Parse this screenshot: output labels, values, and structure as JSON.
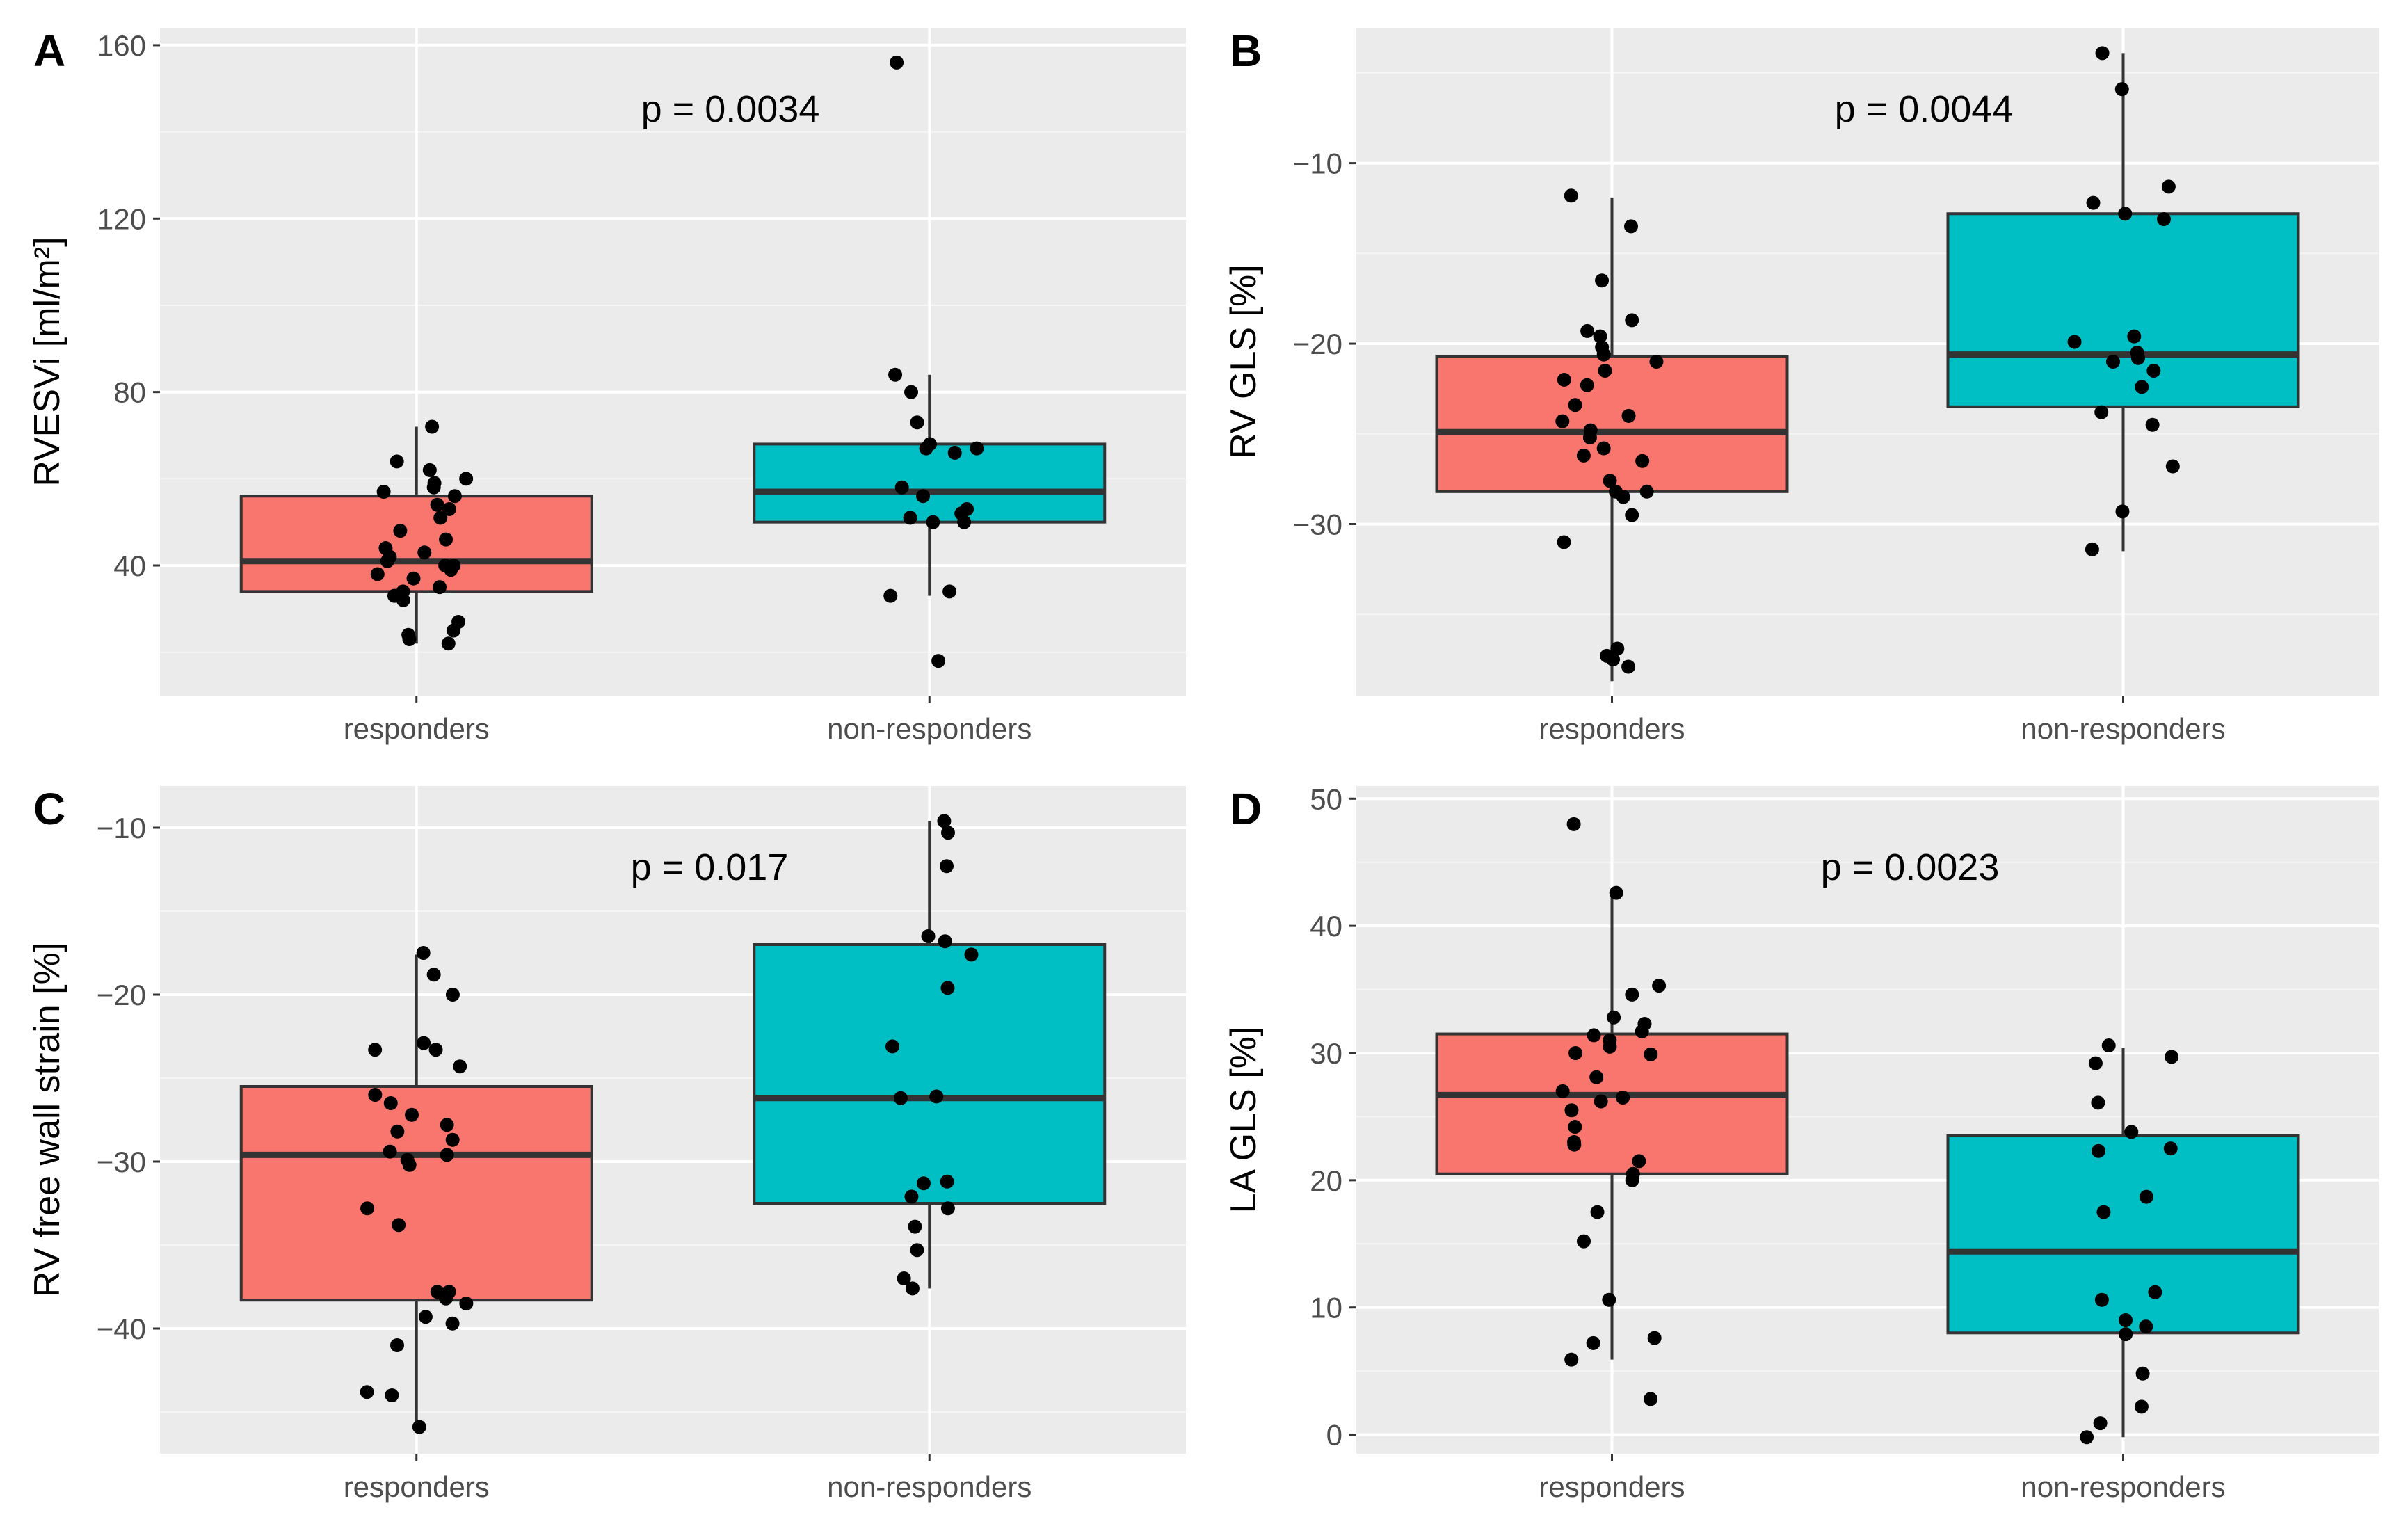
{
  "figure": {
    "background": "#ffffff"
  },
  "style": {
    "panel_bg": "#ebebeb",
    "grid_major": "#ffffff",
    "grid_minor": "#f5f5f5",
    "box_outline": "#333333",
    "point_color": "#000000",
    "text_color": "#000000",
    "tick_label_color": "#4d4d4d"
  },
  "chart_data": [
    {
      "panel_label": "A",
      "type": "box",
      "ylabel": "RVESVi [ml/m²]",
      "xlabel": "",
      "annotation": "p = 0.0034",
      "categories": [
        "responders",
        "non-responders"
      ],
      "ylim": [
        10,
        164
      ],
      "yticks": [
        40,
        80,
        120,
        160
      ],
      "grid": true,
      "legend": "none",
      "series": [
        {
          "category": "responders",
          "color": "#F8766D",
          "q1": 34,
          "median": 41,
          "q3": 56,
          "whisker_low": 22,
          "whisker_high": 72,
          "points": [
            72,
            64,
            62,
            60,
            59,
            58,
            57,
            56,
            54,
            53,
            51,
            48,
            46,
            44,
            43,
            42,
            41,
            40,
            40,
            39,
            38,
            37,
            35,
            34,
            33,
            32,
            27,
            25,
            24,
            23,
            22
          ]
        },
        {
          "category": "non-responders",
          "color": "#00BFC4",
          "q1": 50,
          "median": 57,
          "q3": 68,
          "whisker_low": 33,
          "whisker_high": 84,
          "points": [
            156,
            84,
            80,
            73,
            68,
            67,
            67,
            66,
            58,
            56,
            53,
            52,
            51,
            50,
            50,
            34,
            33,
            18
          ]
        }
      ]
    },
    {
      "panel_label": "B",
      "type": "box",
      "ylabel": "RV GLS [%]",
      "xlabel": "",
      "annotation": "p = 0.0044",
      "categories": [
        "responders",
        "non-responders"
      ],
      "ylim": [
        -39.5,
        -2.5
      ],
      "yticks": [
        -30,
        -20,
        -10
      ],
      "grid": true,
      "legend": "none",
      "series": [
        {
          "category": "responders",
          "color": "#F8766D",
          "q1": -28.2,
          "median": -24.9,
          "q3": -20.7,
          "whisker_low": -38.7,
          "whisker_high": -11.9,
          "points": [
            -11.8,
            -13.5,
            -16.5,
            -18.7,
            -19.3,
            -19.6,
            -20.2,
            -20.6,
            -21.0,
            -21.5,
            -22.0,
            -22.3,
            -23.4,
            -24.0,
            -24.3,
            -24.8,
            -25.2,
            -25.8,
            -26.2,
            -26.5,
            -27.6,
            -28.2,
            -28.2,
            -28.5,
            -29.5,
            -31.0,
            -36.9,
            -37.3,
            -37.5,
            -37.9
          ]
        },
        {
          "category": "non-responders",
          "color": "#00BFC4",
          "q1": -23.5,
          "median": -20.6,
          "q3": -12.8,
          "whisker_low": -31.5,
          "whisker_high": -3.9,
          "points": [
            -3.9,
            -5.9,
            -11.3,
            -12.2,
            -12.8,
            -13.1,
            -19.6,
            -19.9,
            -20.5,
            -20.8,
            -21.0,
            -21.5,
            -22.4,
            -23.8,
            -24.5,
            -26.8,
            -29.3,
            -31.4
          ]
        }
      ]
    },
    {
      "panel_label": "C",
      "type": "box",
      "ylabel": "RV free wall strain [%]",
      "xlabel": "",
      "annotation": "p = 0.017",
      "categories": [
        "responders",
        "non-responders"
      ],
      "ylim": [
        -47.5,
        -7.5
      ],
      "yticks": [
        -40,
        -30,
        -20,
        -10
      ],
      "grid": true,
      "legend": "none",
      "series": [
        {
          "category": "responders",
          "color": "#F8766D",
          "q1": -38.3,
          "median": -29.6,
          "q3": -25.5,
          "whisker_low": -45.9,
          "whisker_high": -17.6,
          "points": [
            -17.5,
            -18.8,
            -20.0,
            -22.9,
            -23.3,
            -23.3,
            -24.3,
            -26.0,
            -26.5,
            -27.2,
            -27.8,
            -28.2,
            -28.7,
            -29.4,
            -29.6,
            -29.9,
            -30.2,
            -32.8,
            -33.8,
            -37.8,
            -37.8,
            -38.2,
            -38.5,
            -39.3,
            -39.7,
            -41.0,
            -43.8,
            -44.0,
            -45.9
          ]
        },
        {
          "category": "non-responders",
          "color": "#00BFC4",
          "q1": -32.5,
          "median": -26.2,
          "q3": -17.0,
          "whisker_low": -37.6,
          "whisker_high": -9.6,
          "points": [
            -9.6,
            -10.3,
            -12.3,
            -16.5,
            -16.8,
            -17.6,
            -19.6,
            -23.1,
            -26.1,
            -26.2,
            -31.2,
            -31.3,
            -32.1,
            -32.8,
            -33.9,
            -35.3,
            -37.0,
            -37.6
          ]
        }
      ]
    },
    {
      "panel_label": "D",
      "type": "box",
      "ylabel": "LA GLS [%]",
      "xlabel": "",
      "annotation": "p = 0.0023",
      "categories": [
        "responders",
        "non-responders"
      ],
      "ylim": [
        -1.5,
        51
      ],
      "yticks": [
        0,
        10,
        20,
        30,
        40,
        50
      ],
      "grid": true,
      "legend": "none",
      "series": [
        {
          "category": "responders",
          "color": "#F8766D",
          "q1": 20.5,
          "median": 26.7,
          "q3": 31.5,
          "whisker_low": 5.9,
          "whisker_high": 42.6,
          "points": [
            48.0,
            42.6,
            35.3,
            34.6,
            32.8,
            32.3,
            31.7,
            31.4,
            31.0,
            30.5,
            30.0,
            29.9,
            28.1,
            27.0,
            26.5,
            26.2,
            25.5,
            24.2,
            23.0,
            22.8,
            21.5,
            20.5,
            20.0,
            17.5,
            15.2,
            10.6,
            7.6,
            7.2,
            5.9,
            2.8
          ]
        },
        {
          "category": "non-responders",
          "color": "#00BFC4",
          "q1": 8.0,
          "median": 14.4,
          "q3": 23.5,
          "whisker_low": -0.2,
          "whisker_high": 30.4,
          "points": [
            30.6,
            29.7,
            29.2,
            26.1,
            23.8,
            22.5,
            22.3,
            18.7,
            17.5,
            11.2,
            10.6,
            9.0,
            8.5,
            7.9,
            4.8,
            2.2,
            0.9,
            -0.2
          ]
        }
      ]
    }
  ]
}
